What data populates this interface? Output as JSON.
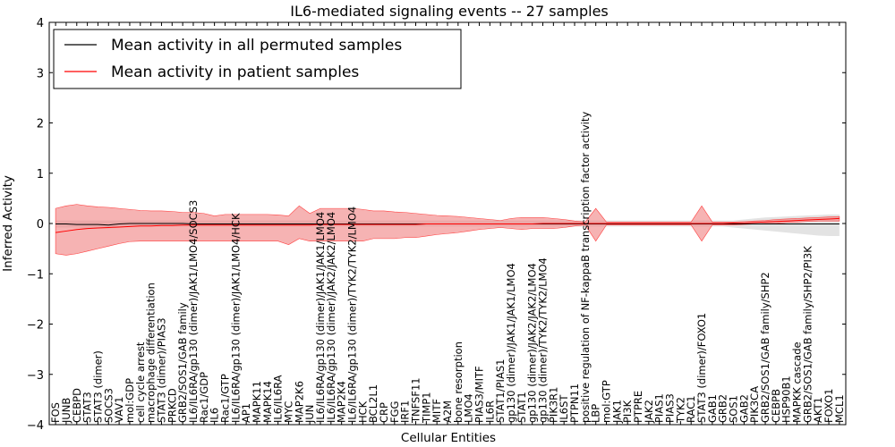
{
  "chart_data": {
    "type": "line",
    "title": "IL6-mediated signaling events -- 27 samples",
    "xlabel": "Cellular Entities",
    "ylabel": "Inferred Activity",
    "ylim": [
      -4,
      4
    ],
    "yticks": [
      -4,
      -3,
      -2,
      -1,
      0,
      1,
      2,
      3,
      4
    ],
    "legend_position": "top-left",
    "categories": [
      "FOS",
      "JUNB",
      "CEBPD",
      "STAT3",
      "STAT3 (dimer)",
      "SOCS3",
      "VAV1",
      "mol:GDP",
      "cell cycle arrest",
      "macrophage differentiation",
      "STAT3 (dimer)/PIAS3",
      "PRKCD",
      "GRB2/SOS1/GAB family",
      "IL6/IL6RA/gp130 (dimer)/JAK1/LMO4/SOCS3",
      "Rac1/GDP",
      "IL6",
      "Rac1/GTP",
      "IL6/IL6RA/gp130 (dimer)/JAK1/LMO4/HCK",
      "AP1",
      "MAPK11",
      "MAPK14",
      "IL6/IL6RA",
      "MYC",
      "MAP2K6",
      "JUN",
      "IL6/IL6RA/gp130 (dimer)/JAK1/JAK1/LMO4",
      "IL6/IL6RA/gp130 (dimer)/JAK2/JAK2/LMO4",
      "MAP2K4",
      "IL6/IL6RA/gp130 (dimer)/TYK2/TYK2/LMO4",
      "HCK",
      "BCL2L1",
      "CRP",
      "FGG",
      "IRF1",
      "TNFSF11",
      "TIMP1",
      "MITF",
      "A2M",
      "bone resorption",
      "LMO4",
      "PIAS3/MITF",
      "IL6R",
      "STAT1/PIAS1",
      "gp130 (dimer)/JAK1/JAK1/LMO4",
      "STAT1",
      "gp130 (dimer)/JAK2/JAK2/LMO4",
      "gp130 (dimer)/TYK2/TYK2/LMO4",
      "PIK3R1",
      "IL6ST",
      "PTPN11",
      "positive regulation of NF-kappaB transcription factor activity",
      "LBP",
      "mol:GTP",
      "JAK1",
      "PI3K",
      "PTPRE",
      "JAK2",
      "PIAS1",
      "PIAS3",
      "TYK2",
      "RAC1",
      "STAT3 (dimer)/FOXO1",
      "GAB1",
      "GRB2",
      "SOS1",
      "GAB2",
      "PIK3CA",
      "GRB2/SOS1/GAB family/SHP2",
      "CEBPB",
      "HSP90B1",
      "MAPKK cascade",
      "GRB2/SOS1/GAB family/SHP2/PI3K",
      "AKT1",
      "FOXO1",
      "MCL1"
    ],
    "series": [
      {
        "name": "Mean activity in all permuted samples",
        "color": "#000000",
        "values": [
          -0.01,
          -0.01,
          -0.02,
          -0.02,
          -0.02,
          -0.03,
          -0.01,
          0.0,
          0.0,
          0.0,
          0.0,
          0.0,
          0.0,
          -0.01,
          -0.01,
          -0.01,
          -0.01,
          -0.01,
          -0.01,
          -0.01,
          -0.01,
          -0.01,
          -0.01,
          -0.01,
          -0.01,
          -0.01,
          -0.01,
          -0.01,
          -0.01,
          -0.01,
          -0.01,
          -0.01,
          -0.01,
          -0.01,
          -0.01,
          -0.01,
          -0.01,
          -0.01,
          -0.01,
          -0.01,
          -0.01,
          -0.01,
          -0.01,
          -0.01,
          -0.01,
          -0.01,
          -0.01,
          -0.01,
          -0.01,
          -0.01,
          -0.01,
          -0.01,
          -0.01,
          -0.01,
          -0.01,
          -0.01,
          -0.01,
          -0.01,
          -0.01,
          -0.01,
          -0.01,
          -0.01,
          -0.01,
          -0.01,
          -0.01,
          -0.01,
          -0.01,
          -0.01,
          -0.01,
          -0.01,
          -0.01,
          -0.01,
          -0.01,
          -0.01,
          -0.01
        ],
        "band_lower": [
          -0.08,
          -0.08,
          -0.08,
          -0.1,
          -0.1,
          -0.1,
          -0.08,
          -0.06,
          -0.06,
          -0.06,
          -0.06,
          -0.06,
          -0.06,
          -0.06,
          -0.06,
          -0.06,
          -0.06,
          -0.06,
          -0.06,
          -0.06,
          -0.06,
          -0.06,
          -0.06,
          -0.06,
          -0.06,
          -0.06,
          -0.06,
          -0.06,
          -0.06,
          -0.06,
          -0.06,
          -0.06,
          -0.06,
          -0.06,
          -0.06,
          -0.06,
          -0.06,
          -0.06,
          -0.06,
          -0.06,
          -0.06,
          -0.06,
          -0.06,
          -0.06,
          -0.06,
          -0.06,
          -0.06,
          -0.06,
          -0.06,
          -0.06,
          -0.06,
          -0.06,
          -0.06,
          -0.06,
          -0.06,
          -0.06,
          -0.06,
          -0.06,
          -0.06,
          -0.06,
          -0.06,
          -0.06,
          -0.06,
          -0.06,
          -0.08,
          -0.1,
          -0.12,
          -0.14,
          -0.16,
          -0.18,
          -0.2,
          -0.22,
          -0.24,
          -0.25,
          -0.25
        ],
        "band_upper": [
          0.06,
          0.06,
          0.06,
          0.06,
          0.06,
          0.06,
          0.06,
          0.06,
          0.06,
          0.06,
          0.06,
          0.06,
          0.06,
          0.06,
          0.06,
          0.06,
          0.06,
          0.06,
          0.06,
          0.06,
          0.06,
          0.06,
          0.06,
          0.06,
          0.06,
          0.06,
          0.06,
          0.06,
          0.06,
          0.06,
          0.06,
          0.06,
          0.06,
          0.06,
          0.06,
          0.06,
          0.06,
          0.06,
          0.06,
          0.06,
          0.06,
          0.06,
          0.06,
          0.06,
          0.06,
          0.06,
          0.06,
          0.06,
          0.06,
          0.06,
          0.06,
          0.06,
          0.06,
          0.06,
          0.06,
          0.06,
          0.06,
          0.06,
          0.06,
          0.06,
          0.06,
          0.06,
          0.06,
          0.06,
          0.06,
          0.08,
          0.1,
          0.12,
          0.13,
          0.14,
          0.15,
          0.16,
          0.17,
          0.18,
          0.18
        ]
      },
      {
        "name": "Mean activity in patient samples",
        "color": "#ff0000",
        "values": [
          -0.18,
          -0.15,
          -0.12,
          -0.1,
          -0.09,
          -0.08,
          -0.07,
          -0.06,
          -0.05,
          -0.05,
          -0.04,
          -0.04,
          -0.03,
          -0.03,
          -0.03,
          -0.03,
          -0.03,
          -0.03,
          -0.03,
          -0.03,
          -0.03,
          -0.03,
          -0.03,
          -0.03,
          -0.03,
          -0.02,
          -0.02,
          -0.02,
          -0.02,
          -0.02,
          -0.02,
          -0.02,
          -0.02,
          -0.02,
          -0.02,
          -0.01,
          -0.01,
          -0.01,
          -0.01,
          -0.01,
          -0.01,
          -0.01,
          -0.01,
          -0.01,
          -0.01,
          -0.01,
          0.0,
          0.0,
          0.0,
          0.0,
          0.0,
          0.0,
          0.0,
          0.0,
          0.0,
          0.0,
          0.0,
          0.0,
          0.0,
          0.0,
          0.0,
          0.0,
          0.0,
          0.0,
          0.01,
          0.01,
          0.02,
          0.03,
          0.04,
          0.05,
          0.06,
          0.07,
          0.08,
          0.09,
          0.1
        ],
        "band_lower": [
          -0.6,
          -0.63,
          -0.6,
          -0.55,
          -0.5,
          -0.45,
          -0.4,
          -0.36,
          -0.35,
          -0.35,
          -0.35,
          -0.35,
          -0.35,
          -0.35,
          -0.35,
          -0.35,
          -0.35,
          -0.35,
          -0.35,
          -0.35,
          -0.35,
          -0.35,
          -0.42,
          -0.3,
          -0.35,
          -0.35,
          -0.35,
          -0.35,
          -0.35,
          -0.35,
          -0.3,
          -0.3,
          -0.3,
          -0.28,
          -0.28,
          -0.25,
          -0.22,
          -0.2,
          -0.18,
          -0.15,
          -0.12,
          -0.1,
          -0.08,
          -0.1,
          -0.12,
          -0.1,
          -0.1,
          -0.1,
          -0.08,
          -0.05,
          -0.03,
          -0.35,
          -0.03,
          -0.03,
          -0.03,
          -0.03,
          -0.03,
          -0.03,
          -0.03,
          -0.03,
          -0.03,
          -0.35,
          -0.03,
          -0.03,
          -0.03,
          -0.02,
          -0.01,
          0.0,
          0.0,
          0.02,
          0.03,
          0.04,
          0.05,
          0.05,
          0.05
        ],
        "band_upper": [
          0.3,
          0.35,
          0.38,
          0.35,
          0.33,
          0.32,
          0.3,
          0.28,
          0.26,
          0.25,
          0.25,
          0.24,
          0.22,
          0.22,
          0.2,
          0.15,
          0.18,
          0.18,
          0.18,
          0.18,
          0.18,
          0.17,
          0.15,
          0.35,
          0.2,
          0.3,
          0.3,
          0.3,
          0.3,
          0.28,
          0.25,
          0.25,
          0.23,
          0.22,
          0.2,
          0.18,
          0.16,
          0.15,
          0.14,
          0.12,
          0.1,
          0.08,
          0.06,
          0.1,
          0.12,
          0.12,
          0.12,
          0.1,
          0.08,
          0.05,
          0.03,
          0.3,
          0.03,
          0.03,
          0.03,
          0.03,
          0.03,
          0.03,
          0.03,
          0.03,
          0.03,
          0.35,
          0.03,
          0.03,
          0.03,
          0.04,
          0.05,
          0.06,
          0.08,
          0.09,
          0.1,
          0.11,
          0.12,
          0.13,
          0.14
        ]
      }
    ]
  },
  "colors": {
    "patient_band": "#f08080",
    "patient_band_stroke": "#ff4040",
    "permuted_band": "#c8c8c8"
  }
}
